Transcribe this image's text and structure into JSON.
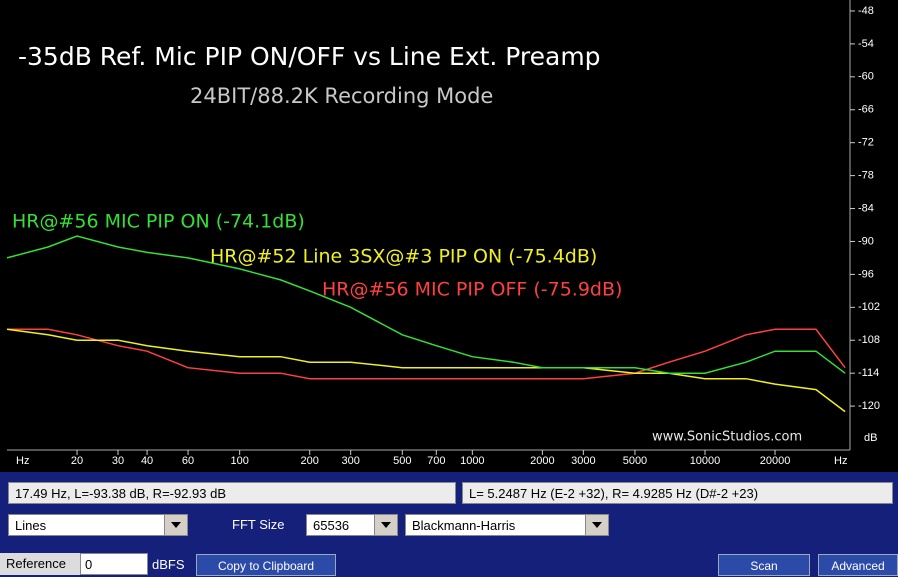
{
  "chart_data": {
    "type": "line",
    "title": "-35dB Ref. Mic PIP ON/OFF vs Line Ext. Preamp",
    "subtitle": "24BIT/88.2K Recording Mode",
    "annotations": [
      {
        "text": "HR@#56 MIC PIP ON (-74.1dB)",
        "color": "#33e033"
      },
      {
        "text": "HR@#52 Line 3SX@#3 PIP ON (-75.4dB)",
        "color": "#f0f020"
      },
      {
        "text": "HR@#56 MIC PIP OFF (-75.9dB)",
        "color": "#ff4040"
      },
      {
        "text": "www.SonicStudios.com",
        "color": "#e8e8e8"
      }
    ],
    "x_unit": "Hz",
    "y_unit": "dB",
    "xscale": "log",
    "x": [
      10,
      15,
      20,
      30,
      40,
      60,
      100,
      150,
      200,
      300,
      500,
      700,
      1000,
      1500,
      2000,
      3000,
      5000,
      7000,
      10000,
      15000,
      20000,
      30000,
      40000
    ],
    "series": [
      {
        "name": "HR@#56 MIC PIP ON",
        "color": "#33e033",
        "values": [
          -93,
          -91,
          -89,
          -91,
          -92,
          -93,
          -95,
          -97,
          -99,
          -102,
          -107,
          -109,
          -111,
          -112,
          -113,
          -113,
          -113,
          -114,
          -114,
          -112,
          -110,
          -110,
          -114
        ]
      },
      {
        "name": "HR@#52 Line 3SX@#3 PIP ON",
        "color": "#f0f020",
        "values": [
          -106,
          -107,
          -108,
          -108,
          -109,
          -110,
          -111,
          -111,
          -112,
          -112,
          -113,
          -113,
          -113,
          -113,
          -113,
          -113,
          -114,
          -114,
          -115,
          -115,
          -116,
          -117,
          -121
        ]
      },
      {
        "name": "HR@#56 MIC PIP OFF",
        "color": "#ff4040",
        "values": [
          -106,
          -106,
          -107,
          -109,
          -110,
          -113,
          -114,
          -114,
          -115,
          -115,
          -115,
          -115,
          -115,
          -115,
          -115,
          -115,
          -114,
          -112,
          -110,
          -107,
          -106,
          -106,
          -113
        ]
      }
    ],
    "xlim": [
      10,
      42000
    ],
    "xticks": [
      20,
      30,
      40,
      60,
      100,
      200,
      300,
      500,
      700,
      1000,
      2000,
      3000,
      5000,
      10000,
      20000
    ],
    "ylim": [
      -128,
      -46
    ],
    "yticks": [
      -48,
      -54,
      -60,
      -66,
      -72,
      -78,
      -84,
      -90,
      -96,
      -102,
      -108,
      -114,
      -120
    ]
  },
  "ui": {
    "status_left": "17.49 Hz, L=-93.38 dB, R=-92.93 dB",
    "status_right": "L= 5.2487 Hz (E-2 +32), R= 4.9285 Hz (D#-2 +23)",
    "display_mode": "Lines",
    "fft_size_label": "FFT Size",
    "fft_size": "65536",
    "window": "Blackmann-Harris",
    "reference_label": "Reference",
    "reference": "0",
    "reference_unit": "dBFS",
    "buttons": [
      "Copy to Clipboard",
      "Scan",
      "Advanced"
    ]
  }
}
